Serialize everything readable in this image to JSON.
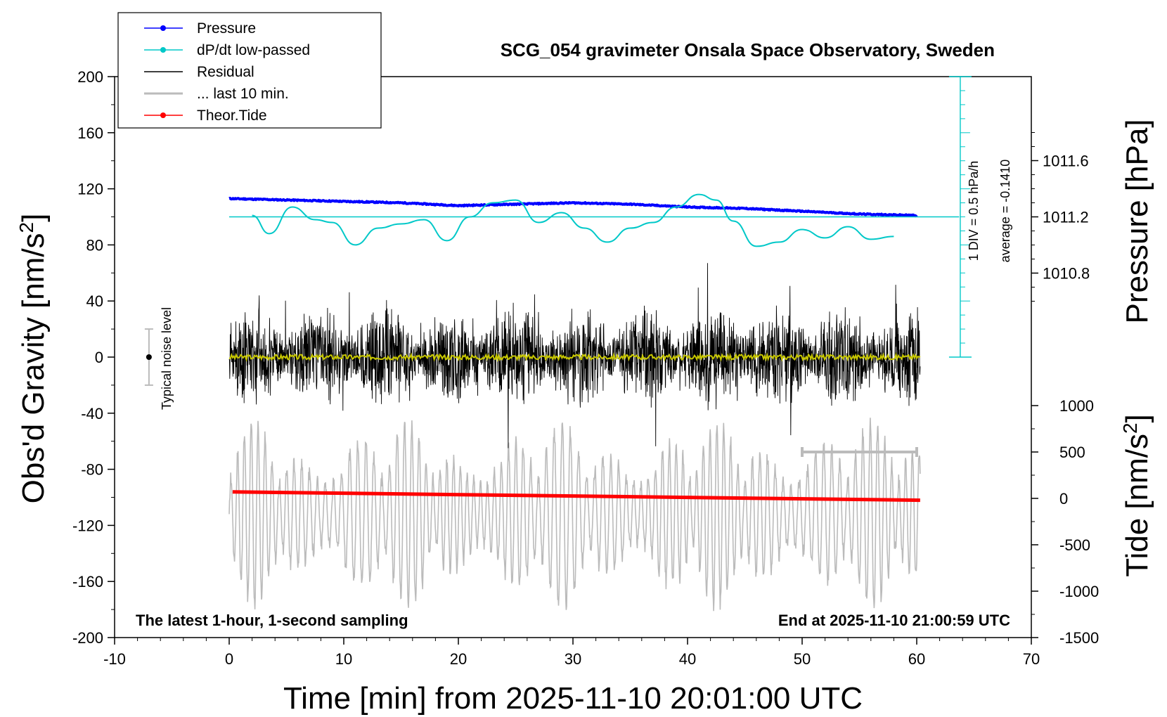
{
  "chart_data": {
    "type": "line",
    "title": "SCG_054 gravimeter Onsala Space Observatory, Sweden",
    "xlabel": "Time [min] from 2025-11-10 20:01:00 UTC",
    "ylabel_left": "Obs'd Gravity [nm/s²]",
    "ylabel_right_top": "Pressure [hPa]",
    "ylabel_right_bottom": "Tide [nm/s²]",
    "xlim": [
      -10,
      70
    ],
    "ylim": [
      -200,
      200
    ],
    "pressure_ylim_labels": [
      1010.8,
      1011.2,
      1011.6
    ],
    "tide_ylim": [
      -1500,
      1000
    ],
    "x_ticks": [
      "-10",
      "0",
      "10",
      "20",
      "30",
      "40",
      "50",
      "60",
      "70"
    ],
    "y_ticks": [
      "-200",
      "-160",
      "-120",
      "-80",
      "-40",
      "0",
      "40",
      "80",
      "120",
      "160",
      "200"
    ],
    "pressure_ticks": [
      "1010.8",
      "1011.2",
      "1011.6"
    ],
    "tide_ticks": [
      "-1500",
      "-1000",
      "-500",
      "0",
      "500",
      "1000"
    ],
    "legend": [
      {
        "label": "Pressure",
        "color": "#0000ff",
        "marker": true
      },
      {
        "label": "dP/dt low-passed",
        "color": "#00c8c8",
        "marker": true
      },
      {
        "label": "Residual",
        "color": "#000000",
        "marker": false
      },
      {
        "label": "... last 10 min.",
        "color": "#bbbbbb",
        "marker": false
      },
      {
        "label": "Theor.Tide",
        "color": "#ff0000",
        "marker": true
      }
    ],
    "series": [
      {
        "name": "Pressure",
        "color": "#0000ff",
        "x": [
          0,
          5,
          10,
          15,
          20,
          25,
          30,
          35,
          40,
          45,
          50,
          55,
          60
        ],
        "y_hPa": [
          1011.33,
          1011.32,
          1011.31,
          1011.3,
          1011.28,
          1011.29,
          1011.3,
          1011.29,
          1011.27,
          1011.26,
          1011.24,
          1011.22,
          1011.21
        ]
      },
      {
        "name": "dP/dt low-passed",
        "color": "#00c8c8",
        "x": [
          2,
          3.5,
          5.5,
          7.5,
          9,
          11,
          13,
          15,
          17,
          19,
          21,
          23,
          25,
          27,
          29,
          31,
          33,
          35,
          37,
          39,
          41,
          42.5,
          44,
          46,
          48,
          50,
          52,
          54,
          56,
          58
        ],
        "y": [
          101,
          88,
          107,
          98,
          96,
          80,
          92,
          95,
          98,
          83,
          100,
          110,
          112,
          96,
          103,
          92,
          82,
          92,
          96,
          107,
          116,
          112,
          97,
          79,
          82,
          91,
          85,
          93,
          84,
          86
        ]
      },
      {
        "name": "Residual",
        "color": "#000000",
        "x_range": [
          0,
          60.3
        ],
        "amplitude_nm_s2": 65
      },
      {
        "name": "Residual low-passed",
        "color": "#c8c800",
        "x_range": [
          0,
          60.3
        ],
        "y": 0
      },
      {
        "name": "... last 10 min.",
        "color": "#bbbbbb",
        "x_range": [
          0,
          60.3
        ],
        "center_y": -112
      },
      {
        "name": "Theor.Tide",
        "color": "#ff0000",
        "x": [
          0.3,
          60.3
        ],
        "y_tide": [
          70,
          -20
        ]
      }
    ],
    "dpdt_scale": {
      "div_label": "1 DIV = 0.5 hPa/h",
      "average_label": "average = -0.1410",
      "baseline_y": 100
    },
    "noise_level": {
      "label": "Typical noise level",
      "x": -7,
      "y": 0,
      "err": 20
    },
    "last10_range_bar": {
      "x": [
        50,
        60
      ],
      "tide": 500
    },
    "note_left": "The latest 1-hour, 1-second sampling",
    "note_right": "End at 2025-11-10 21:00:59 UTC",
    "grid": false,
    "legend_position": "top-left"
  }
}
